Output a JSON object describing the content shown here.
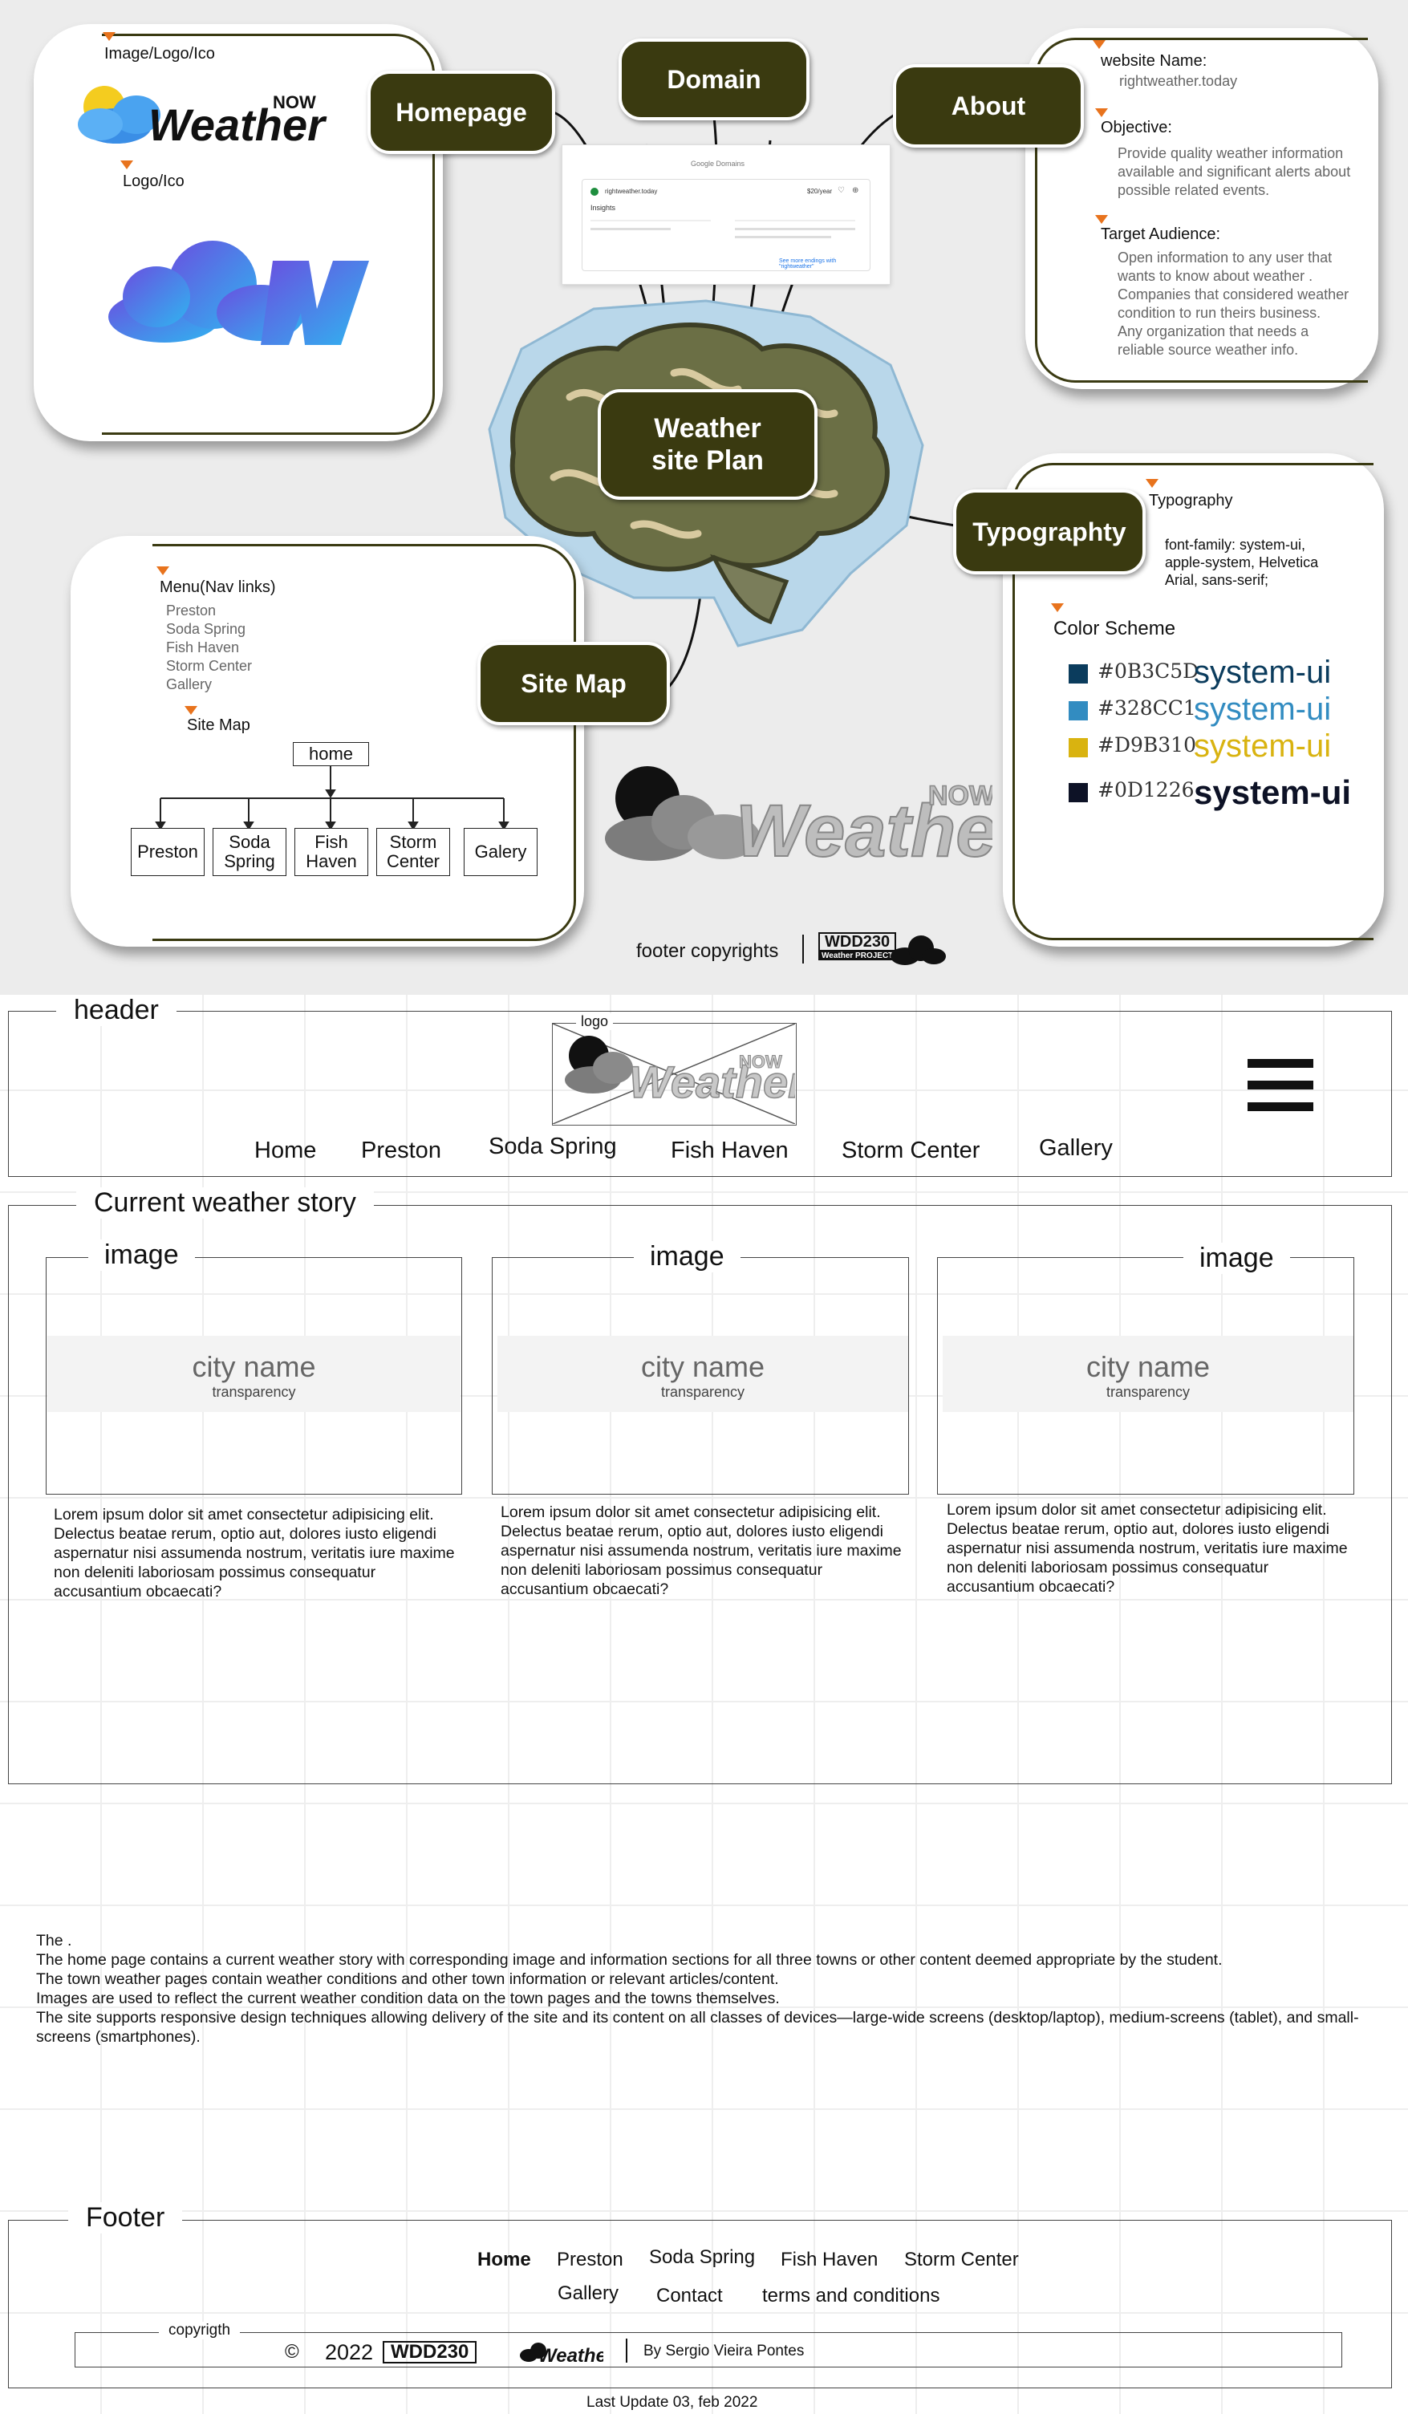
{
  "plan": {
    "center": {
      "line1": "Weather",
      "line2": "site Plan"
    },
    "nodes": {
      "homepage": "Homepage",
      "domain": "Domain",
      "about": "About",
      "typography": "Typographty",
      "sitemap": "Site Map"
    },
    "homepage_card": {
      "label_image": "Image/Logo/Ico",
      "label_logo": "Logo/Ico"
    },
    "about_card": {
      "website_name_label": "website Name:",
      "website_name": "rightweather.today",
      "objective_label": "Objective:",
      "objective_lines": [
        "Provide quality weather information",
        "available and significant alerts about",
        "possible related events."
      ],
      "target_label": "Target Audience:",
      "target_lines": [
        "Open information to any user that",
        "wants to know about weather .",
        "Companies that considered weather",
        "condition  to run theirs business.",
        "Any organization that needs a",
        "reliable source weather info."
      ]
    },
    "typo_card": {
      "typography_label": "Typography",
      "font_lines": [
        "font-family: system-ui,",
        "apple-system, Helvetica",
        " Arial, sans-serif;"
      ],
      "color_scheme_label": "Color Scheme",
      "colors": [
        {
          "hex": "#0B3C5D",
          "label": "#0B3C5D",
          "sample": "system-ui"
        },
        {
          "hex": "#328CC1",
          "label": "#328CC1",
          "sample": "system-ui"
        },
        {
          "hex": "#D9B310",
          "label": "#D9B310",
          "sample": "system-ui"
        },
        {
          "hex": "#0D1226",
          "label": "#0D1226",
          "sample": "system-ui"
        }
      ]
    },
    "sitemap_card": {
      "menu_label": "Menu(Nav links)",
      "menu_items": [
        "Preston",
        "Soda Spring",
        "Fish Haven",
        "Storm Center",
        "Gallery"
      ],
      "sitemap_label": "Site Map",
      "root": "home",
      "children": [
        "Preston",
        "Soda Spring",
        "Fish Haven",
        "Storm Center",
        "Galery"
      ]
    },
    "domain_card": {
      "brand": "Google Domains",
      "domain": "rightweather.today",
      "price": "$20/year",
      "insights": "Insights",
      "link": "See more endings with \"rightweather\""
    },
    "logo_text": {
      "main": "Weather",
      "now": "NOW"
    },
    "footer_note": "footer copyrights",
    "badge": {
      "course": "WDD230",
      "sub": "Weather PROJECT"
    }
  },
  "wireframe": {
    "header_legend": "header",
    "logo_label": "logo",
    "nav": [
      "Home",
      "Preston",
      "Soda Spring",
      "Fish Haven",
      "Storm Center",
      "Gallery"
    ],
    "story_legend": "Current weather story",
    "image_legend": "image",
    "city_name": "city name",
    "transparency": "transparency",
    "lorem": "Lorem ipsum dolor sit amet consectetur adipisicing elit. Delectus beatae rerum, optio aut, dolores iusto eligendi aspernatur nisi assumenda nostrum, veritatis iure maxime non deleniti laboriosam possimus consequatur accusantium obcaecati?",
    "notes": [
      "The .",
      "The home page contains a current weather story with corresponding image and information sections for all three towns or other content deemed appropriate by the student.",
      "The town weather pages contain weather conditions and other town information or relevant articles/content.",
      "Images are used to reflect the current weather condition data on the town pages and the towns themselves.",
      "The site supports responsive design techniques allowing delivery of the site and its content on all classes of devices—large-wide screens (desktop/laptop), medium-screens (tablet), and small-screens (smartphones)."
    ],
    "footer_legend": "Footer",
    "footer_links_row1": [
      "Home",
      "Preston",
      "Soda Spring",
      "Fish Haven",
      "Storm Center"
    ],
    "footer_links_row2": [
      "Gallery",
      "Contact",
      "terms and conditions"
    ],
    "copyright_legend": "copyrigth",
    "copyright_symbol": "©",
    "year": "2022",
    "author": "By Sergio Vieira Pontes",
    "last_update": "Last Update 03, feb 2022"
  }
}
